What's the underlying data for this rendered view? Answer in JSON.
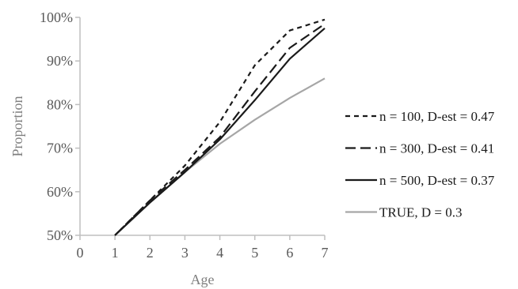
{
  "chart_data": {
    "type": "line",
    "title": "",
    "xlabel": "Age",
    "ylabel": "Proportion",
    "xlim": [
      0,
      7
    ],
    "ylim": [
      0.5,
      1.0
    ],
    "x_ticks": [
      "0",
      "1",
      "2",
      "3",
      "4",
      "5",
      "6",
      "7"
    ],
    "y_ticks": [
      "50%",
      "60%",
      "70%",
      "80%",
      "90%",
      "100%"
    ],
    "grid": false,
    "legend_position": "right",
    "x": [
      1,
      2,
      3,
      4,
      5,
      6,
      7
    ],
    "series": [
      {
        "name": "n = 100, D-est = 0.47",
        "style": "short-dash",
        "color": "#1a1a1a",
        "values": [
          0.5,
          0.58,
          0.66,
          0.76,
          0.89,
          0.97,
          0.995
        ]
      },
      {
        "name": "n = 300, D-est = 0.41",
        "style": "long-dash",
        "color": "#1a1a1a",
        "values": [
          0.5,
          0.58,
          0.65,
          0.725,
          0.83,
          0.93,
          0.985
        ]
      },
      {
        "name": "n = 500, D-est = 0.37",
        "style": "solid",
        "color": "#1a1a1a",
        "values": [
          0.5,
          0.575,
          0.645,
          0.72,
          0.81,
          0.905,
          0.975
        ]
      },
      {
        "name": "TRUE, D = 0.3",
        "style": "solid",
        "color": "#a6a6a6",
        "values": [
          0.5,
          0.575,
          0.645,
          0.71,
          0.765,
          0.815,
          0.86
        ]
      }
    ]
  }
}
